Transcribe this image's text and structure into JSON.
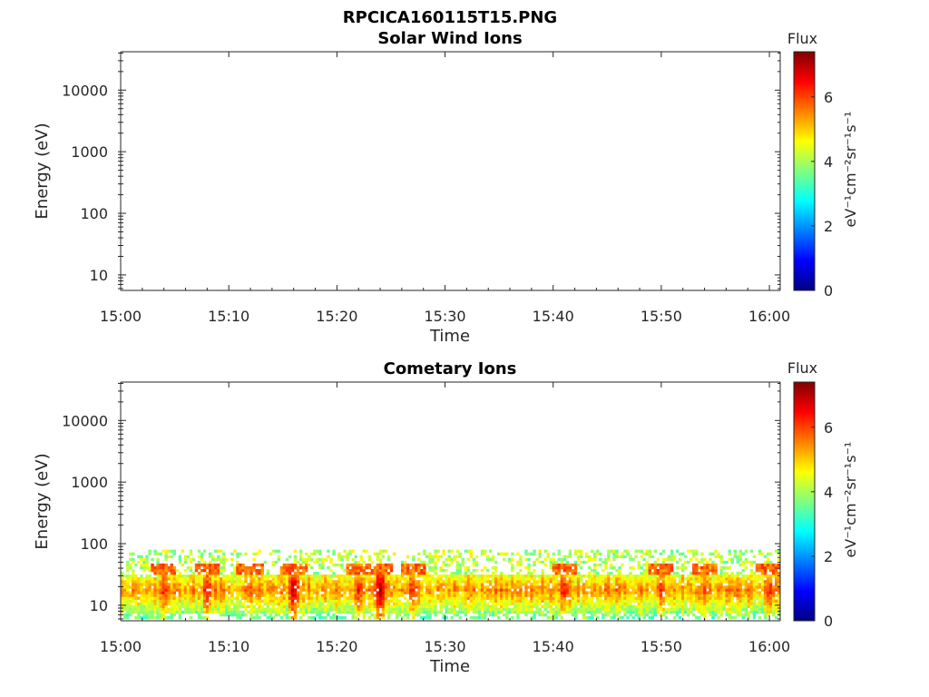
{
  "figure": {
    "title": "RPCICA160115T15.PNG"
  },
  "chart_data": [
    {
      "type": "heatmap",
      "title": "Solar Wind Ions",
      "xlabel": "Time",
      "ylabel": "Energy (eV)",
      "x_ticks": [
        "15:00",
        "15:10",
        "15:20",
        "15:30",
        "15:40",
        "15:50",
        "16:00"
      ],
      "y_ticks": [
        "10",
        "100",
        "1000",
        "10000"
      ],
      "y_scale": "log",
      "ylim": [
        5.6,
        42000
      ],
      "xlim": [
        "15:00",
        "16:01"
      ],
      "colorbar": {
        "label": "Flux",
        "unit_label": "eV⁻¹cm⁻²sr⁻¹s⁻¹",
        "ticks": [
          "0",
          "2",
          "4",
          "6"
        ],
        "range": [
          0,
          7.4
        ]
      },
      "cells": []
    },
    {
      "type": "heatmap",
      "title": "Cometary Ions",
      "xlabel": "Time",
      "ylabel": "Energy (eV)",
      "x_ticks": [
        "15:00",
        "15:10",
        "15:20",
        "15:30",
        "15:40",
        "15:50",
        "16:00"
      ],
      "y_ticks": [
        "10",
        "100",
        "1000",
        "10000"
      ],
      "y_scale": "log",
      "ylim": [
        5.6,
        42000
      ],
      "xlim": [
        "15:00",
        "16:01"
      ],
      "colorbar": {
        "label": "Flux",
        "unit_label": "eV⁻¹cm⁻²sr⁻¹s⁻¹",
        "ticks": [
          "0",
          "2",
          "4",
          "6"
        ],
        "range": [
          0,
          7.4
        ]
      },
      "band": {
        "e_low": 6,
        "e_high_sparse": 80,
        "e_high_dense": 30,
        "peak_energy": 18,
        "peaks": [
          {
            "t": "15:04",
            "f": 6.3
          },
          {
            "t": "15:08",
            "f": 6.5
          },
          {
            "t": "15:12",
            "f": 5.9
          },
          {
            "t": "15:16",
            "f": 7.0
          },
          {
            "t": "15:22",
            "f": 6.4
          },
          {
            "t": "15:24",
            "f": 7.2
          },
          {
            "t": "15:27",
            "f": 6.3
          },
          {
            "t": "15:41",
            "f": 6.4
          },
          {
            "t": "15:50",
            "f": 6.2
          },
          {
            "t": "15:54",
            "f": 6.1
          },
          {
            "t": "16:00",
            "f": 6.3
          }
        ]
      }
    }
  ]
}
